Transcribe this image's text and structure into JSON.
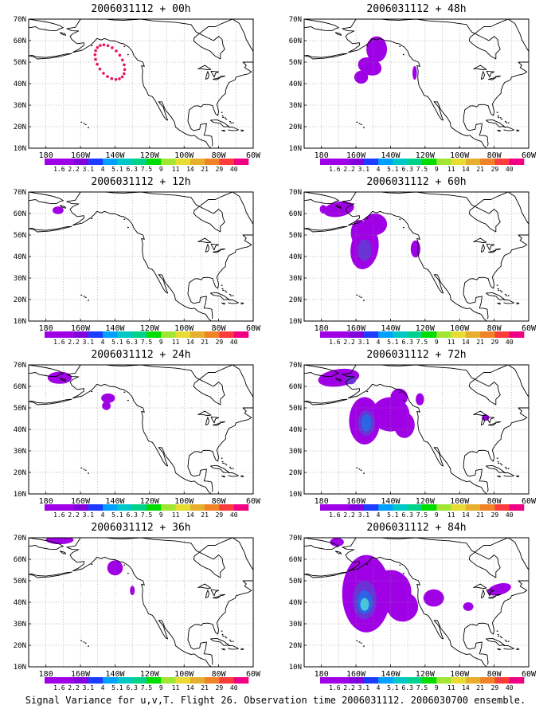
{
  "panels": [
    {
      "title": "2006031112 + 00h",
      "style": "dots",
      "blobs": [
        {
          "lon": -143,
          "lat": 50,
          "rx": 7,
          "ry": 9,
          "rot": -35,
          "level": 0
        }
      ]
    },
    {
      "title": "2006031112 + 48h",
      "style": "fill",
      "blobs": [
        {
          "lon": -148,
          "lat": 56,
          "rx": 6,
          "ry": 6,
          "rot": 0,
          "level": 0
        },
        {
          "lon": -152,
          "lat": 48,
          "rx": 7,
          "ry": 4,
          "rot": 20,
          "level": 0
        },
        {
          "lon": -157,
          "lat": 43,
          "rx": 4,
          "ry": 3,
          "rot": 0,
          "level": 0
        },
        {
          "lon": -126,
          "lat": 45,
          "rx": 1.3,
          "ry": 3.2,
          "rot": 0,
          "level": 0
        }
      ]
    },
    {
      "title": "2006031112 + 12h",
      "style": "fill",
      "blobs": [
        {
          "lon": -173,
          "lat": 61.5,
          "rx": 3.2,
          "ry": 1.8,
          "rot": 0,
          "level": 0
        }
      ]
    },
    {
      "title": "2006031112 + 60h",
      "style": "fill",
      "blobs": [
        {
          "lon": -170,
          "lat": 62,
          "rx": 9,
          "ry": 3.5,
          "rot": -10,
          "level": 0
        },
        {
          "lon": -155,
          "lat": 44,
          "rx": 8,
          "ry": 10,
          "rot": 10,
          "level": 0
        },
        {
          "lon": -149,
          "lat": 55,
          "rx": 7,
          "ry": 5,
          "rot": 0,
          "level": 0
        },
        {
          "lon": -158,
          "lat": 51,
          "rx": 5,
          "ry": 6,
          "rot": 0,
          "level": 0
        },
        {
          "lon": -125.5,
          "lat": 43.5,
          "rx": 2.8,
          "ry": 4,
          "rot": 0,
          "level": 0
        },
        {
          "lon": -155,
          "lat": 43,
          "rx": 4,
          "ry": 5,
          "rot": 0,
          "level": 1
        },
        {
          "lon": -179,
          "lat": 62,
          "rx": 2,
          "ry": 2,
          "rot": 0,
          "level": 0
        }
      ]
    },
    {
      "title": "2006031112 + 24h",
      "style": "fill",
      "blobs": [
        {
          "lon": -172,
          "lat": 64,
          "rx": 7,
          "ry": 2.8,
          "rot": 0,
          "level": 0
        },
        {
          "lon": -144,
          "lat": 54.5,
          "rx": 4,
          "ry": 2.2,
          "rot": 0,
          "level": 0
        },
        {
          "lon": -145,
          "lat": 51,
          "rx": 2.5,
          "ry": 2,
          "rot": 0,
          "level": 0
        }
      ]
    },
    {
      "title": "2006031112 + 72h",
      "style": "fill",
      "blobs": [
        {
          "lon": -170,
          "lat": 64,
          "rx": 12,
          "ry": 4,
          "rot": -8,
          "level": 0
        },
        {
          "lon": -155,
          "lat": 44,
          "rx": 9,
          "ry": 11,
          "rot": 0,
          "level": 0
        },
        {
          "lon": -140,
          "lat": 47,
          "rx": 11,
          "ry": 8,
          "rot": 0,
          "level": 0
        },
        {
          "lon": -132,
          "lat": 42,
          "rx": 6,
          "ry": 6,
          "rot": 0,
          "level": 0
        },
        {
          "lon": -135,
          "lat": 55,
          "rx": 5,
          "ry": 4,
          "rot": 0,
          "level": 0
        },
        {
          "lon": -123,
          "lat": 54,
          "rx": 2.4,
          "ry": 2.8,
          "rot": 0,
          "level": 0
        },
        {
          "lon": -85,
          "lat": 45.5,
          "rx": 2.2,
          "ry": 1.5,
          "rot": 0,
          "level": 0
        },
        {
          "lon": -154,
          "lat": 43,
          "rx": 5,
          "ry": 6,
          "rot": 0,
          "level": 1
        },
        {
          "lon": -154,
          "lat": 43,
          "rx": 3,
          "ry": 4,
          "rot": 0,
          "level": 2
        },
        {
          "lon": -163,
          "lat": 63,
          "rx": 3,
          "ry": 2,
          "rot": 0,
          "level": 1
        }
      ]
    },
    {
      "title": "2006031112 + 36h",
      "style": "fill",
      "blobs": [
        {
          "lon": -172,
          "lat": 69,
          "rx": 8,
          "ry": 2,
          "rot": 0,
          "level": 0
        },
        {
          "lon": -140,
          "lat": 56,
          "rx": 4.5,
          "ry": 3.5,
          "rot": 0,
          "level": 0
        },
        {
          "lon": -130,
          "lat": 45.5,
          "rx": 1.4,
          "ry": 2.2,
          "rot": 0,
          "level": 0
        }
      ]
    },
    {
      "title": "2006031112 + 84h",
      "style": "fill",
      "blobs": [
        {
          "lon": -154,
          "lat": 44,
          "rx": 14,
          "ry": 18,
          "rot": 0,
          "level": 0
        },
        {
          "lon": -140,
          "lat": 45,
          "rx": 12,
          "ry": 10,
          "rot": 0,
          "level": 0
        },
        {
          "lon": -133,
          "lat": 38,
          "rx": 9,
          "ry": 7,
          "rot": 0,
          "level": 0
        },
        {
          "lon": -115,
          "lat": 42,
          "rx": 6,
          "ry": 4,
          "rot": 0,
          "level": 0
        },
        {
          "lon": -171,
          "lat": 68,
          "rx": 4,
          "ry": 2,
          "rot": 0,
          "level": 0
        },
        {
          "lon": -95,
          "lat": 38,
          "rx": 3,
          "ry": 2,
          "rot": 0,
          "level": 0
        },
        {
          "lon": -77,
          "lat": 46,
          "rx": 7,
          "ry": 2.6,
          "rot": -15,
          "level": 0
        },
        {
          "lon": -155,
          "lat": 41,
          "rx": 7,
          "ry": 9,
          "rot": 0,
          "level": 1
        },
        {
          "lon": -155,
          "lat": 40,
          "rx": 4.5,
          "ry": 5.5,
          "rot": 0,
          "level": 2
        },
        {
          "lon": -155,
          "lat": 39,
          "rx": 2.5,
          "ry": 3,
          "rot": 0,
          "level": 3
        }
      ]
    }
  ],
  "y_ticks": [
    "70N",
    "60N",
    "50N",
    "40N",
    "30N",
    "20N",
    "10N"
  ],
  "x_ticks": [
    "180",
    "160W",
    "140W",
    "120W",
    "100W",
    "80W",
    "60W"
  ],
  "colorbar": {
    "labels": [
      "1.6",
      "2.2",
      "3.1",
      "4",
      "5.1",
      "6.3",
      "7.5",
      "9",
      "11",
      "14",
      "21",
      "29",
      "40"
    ],
    "colors": [
      "#a000e6",
      "#8200dc",
      "#1e3cff",
      "#00a0ff",
      "#00c8c8",
      "#00d28c",
      "#00dc00",
      "#a0e632",
      "#e6dc32",
      "#e6af2d",
      "#f08228",
      "#fa3c3c",
      "#f00082"
    ]
  },
  "fill_levels": [
    "#a000e6",
    "#6a33d6",
    "#2c64e6",
    "#46c8d8"
  ],
  "dot_color": "#e6145a",
  "footer": "Signal Variance for u,v,T. Flight 26. Observation time 2006031112. 2006030700 ensemble."
}
